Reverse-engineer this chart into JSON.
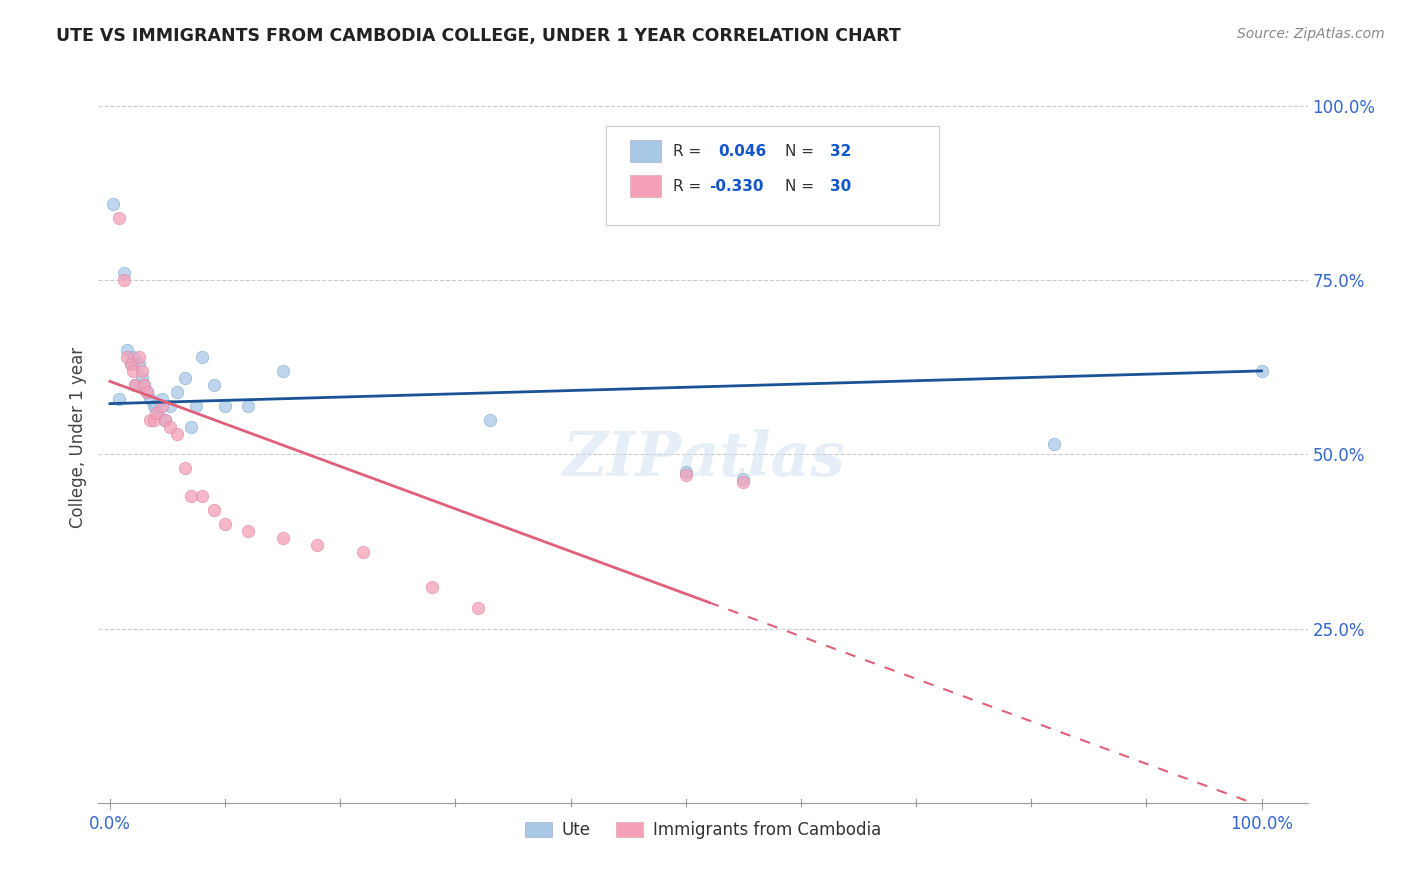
{
  "title": "UTE VS IMMIGRANTS FROM CAMBODIA COLLEGE, UNDER 1 YEAR CORRELATION CHART",
  "source": "Source: ZipAtlas.com",
  "ylabel": "College, Under 1 year",
  "legend_label1": "Ute",
  "legend_label2": "Immigrants from Cambodia",
  "r1": "0.046",
  "n1": "32",
  "r2": "-0.330",
  "n2": "30",
  "blue_color": "#a8c8e8",
  "pink_color": "#f4a0b8",
  "line_blue": "#1a5296",
  "line_pink": "#e0607a",
  "ute_x": [
    0.003,
    0.008,
    0.012,
    0.015,
    0.018,
    0.02,
    0.022,
    0.025,
    0.028,
    0.03,
    0.032,
    0.035,
    0.038,
    0.04,
    0.042,
    0.045,
    0.048,
    0.052,
    0.058,
    0.065,
    0.07,
    0.075,
    0.08,
    0.09,
    0.1,
    0.12,
    0.15,
    0.33,
    0.5,
    0.55,
    0.82,
    1.0
  ],
  "ute_y": [
    0.86,
    0.58,
    0.76,
    0.65,
    0.63,
    0.64,
    0.6,
    0.63,
    0.61,
    0.6,
    0.59,
    0.58,
    0.57,
    0.57,
    0.56,
    0.58,
    0.55,
    0.57,
    0.59,
    0.61,
    0.54,
    0.57,
    0.64,
    0.6,
    0.57,
    0.57,
    0.62,
    0.55,
    0.475,
    0.465,
    0.515,
    0.62
  ],
  "camb_x": [
    0.008,
    0.012,
    0.015,
    0.018,
    0.02,
    0.022,
    0.025,
    0.028,
    0.03,
    0.032,
    0.035,
    0.038,
    0.04,
    0.045,
    0.048,
    0.052,
    0.058,
    0.065,
    0.07,
    0.08,
    0.09,
    0.1,
    0.12,
    0.15,
    0.18,
    0.22,
    0.28,
    0.32,
    0.5,
    0.55
  ],
  "camb_y": [
    0.84,
    0.75,
    0.64,
    0.63,
    0.62,
    0.6,
    0.64,
    0.62,
    0.6,
    0.59,
    0.55,
    0.55,
    0.56,
    0.57,
    0.55,
    0.54,
    0.53,
    0.48,
    0.44,
    0.44,
    0.42,
    0.4,
    0.39,
    0.38,
    0.37,
    0.36,
    0.31,
    0.28,
    0.47,
    0.46
  ],
  "watermark": "ZIPatlas",
  "background": "#ffffff",
  "grid_color": "#cccccc",
  "ylim_min": 0.0,
  "ylim_max": 1.05,
  "xlim_min": -0.01,
  "xlim_max": 1.04
}
